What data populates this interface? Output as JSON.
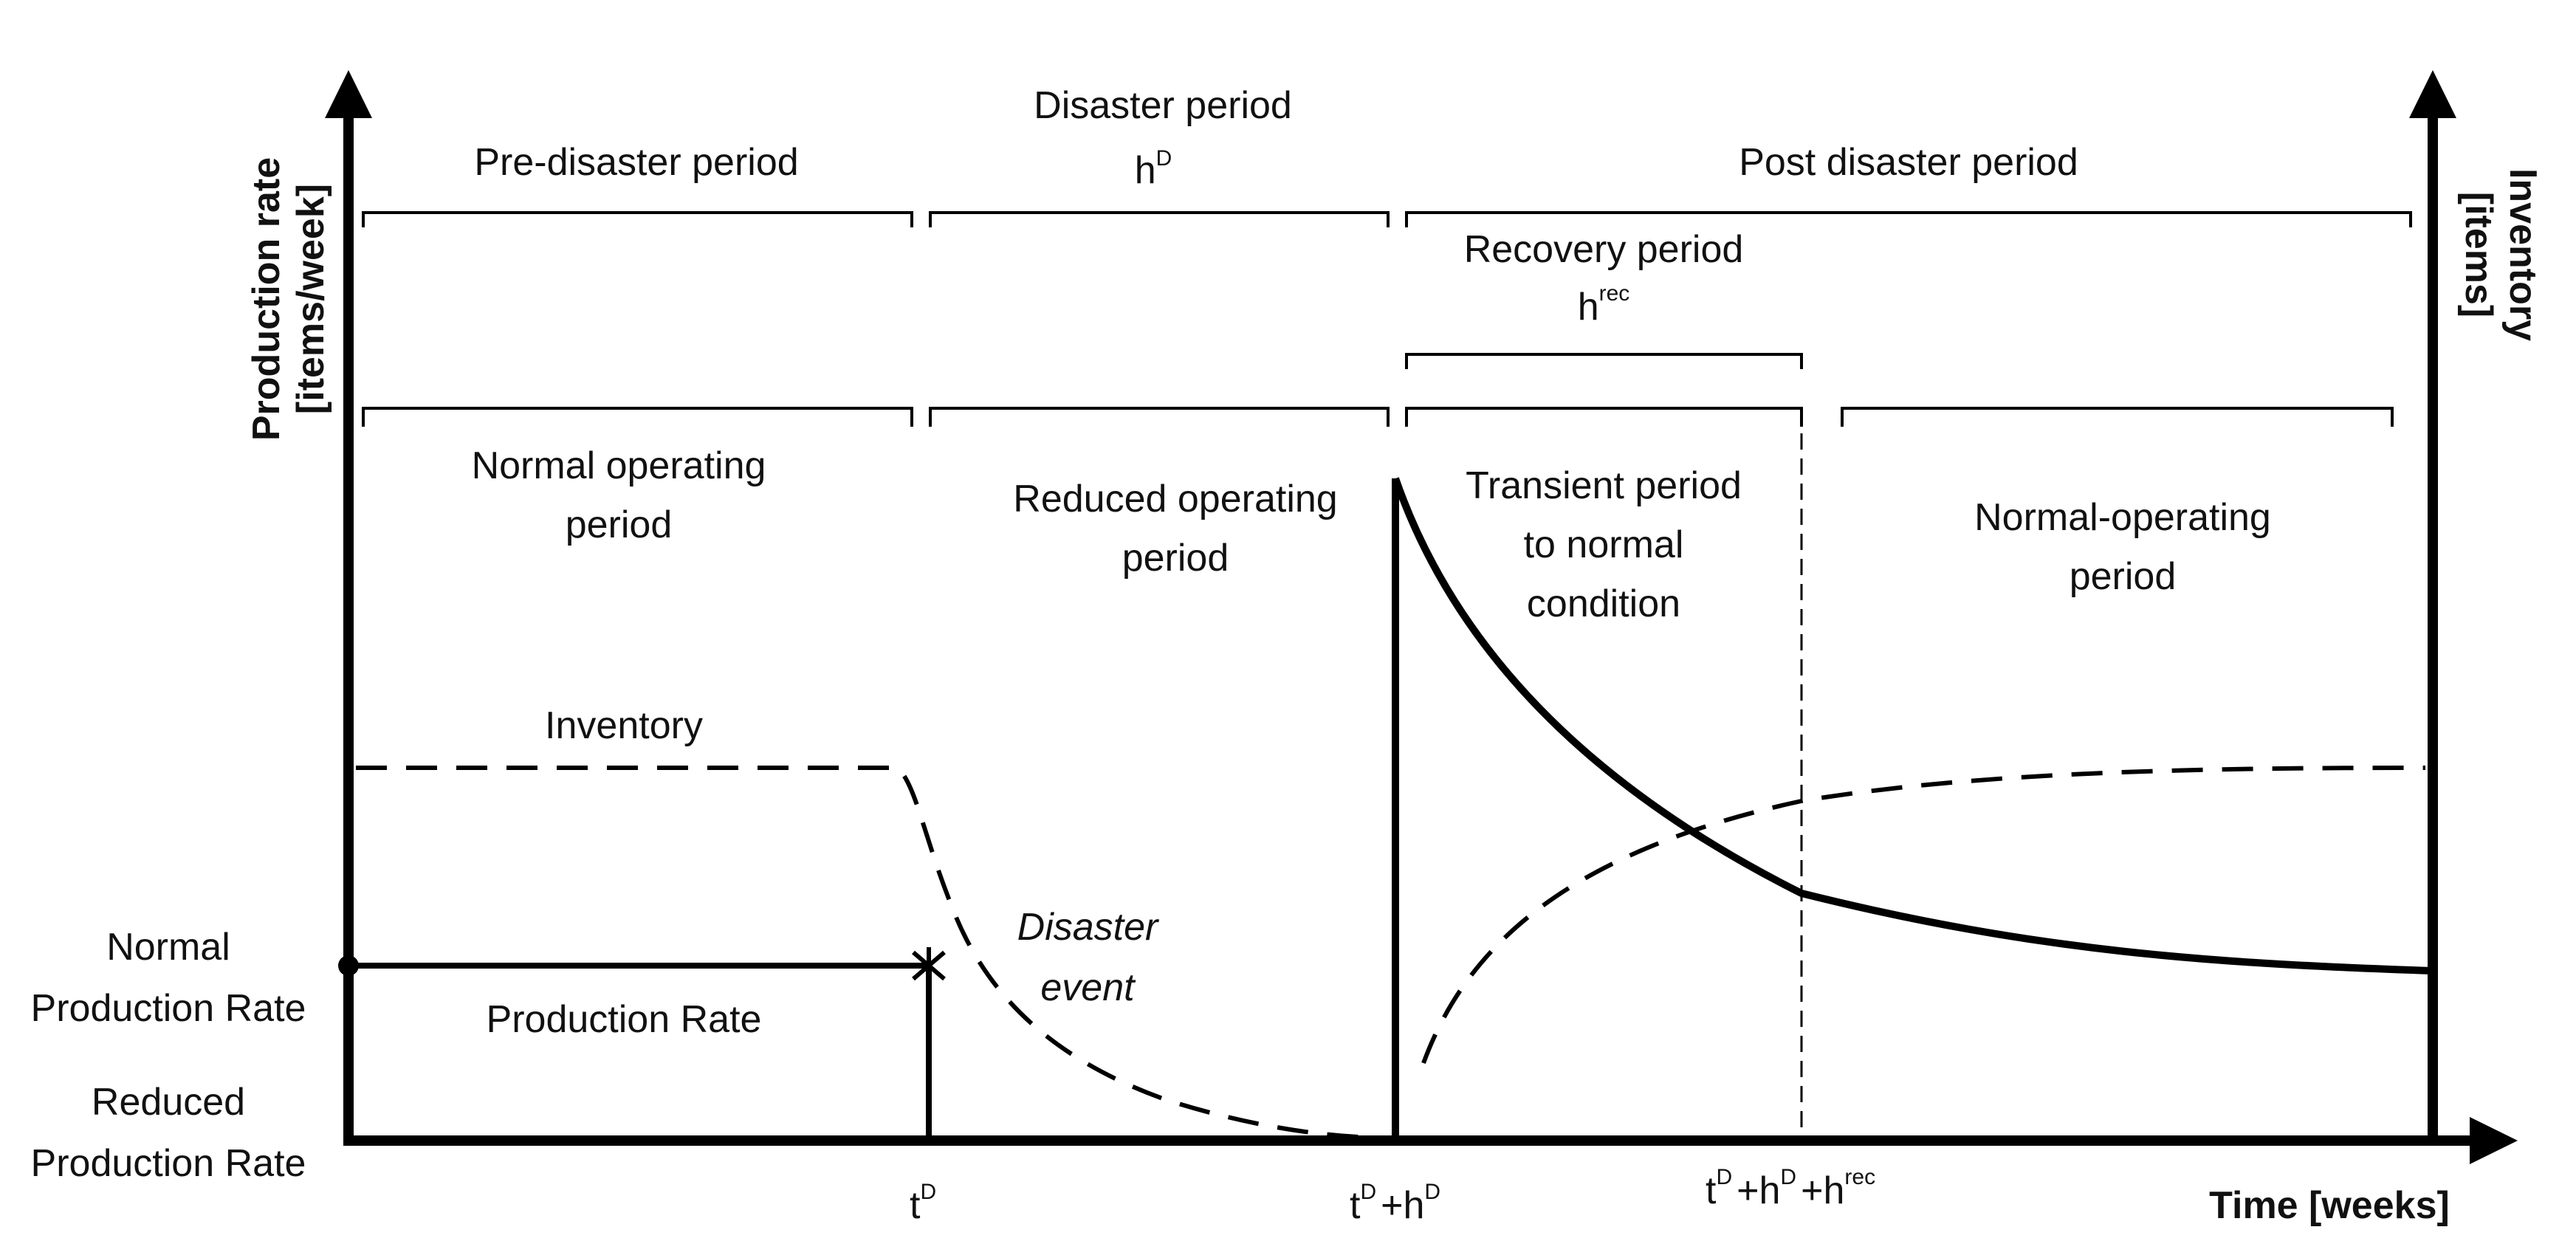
{
  "title": "",
  "axes": {
    "left_label_line1": "Production rate",
    "left_label_line2": "[items/week]",
    "right_label_line1": "Inventory",
    "right_label_line2": "[items]",
    "x_label": "Time [weeks]"
  },
  "periods": {
    "pre_disaster": "Pre-disaster period",
    "disaster": "Disaster period",
    "disaster_symbol": "h",
    "disaster_symbol_sup": "D",
    "post_disaster": "Post disaster period",
    "recovery": "Recovery period",
    "recovery_symbol": "h",
    "recovery_symbol_sup": "rec"
  },
  "phases": {
    "normal_line1": "Normal operating",
    "normal_line2": "period",
    "reduced_line1": "Reduced operating",
    "reduced_line2": "period",
    "transient_line1": "Transient period",
    "transient_line2": "to normal",
    "transient_line3": "condition",
    "normal2_line1": "Normal-operating",
    "normal2_line2": "period"
  },
  "curves": {
    "inventory": "Inventory",
    "production_rate": "Production Rate",
    "disaster_event_line1": "Disaster",
    "disaster_event_line2": "event"
  },
  "y_ticks": {
    "normal_line1": "Normal",
    "normal_line2": "Production Rate",
    "reduced_line1": "Reduced",
    "reduced_line2": "Production Rate"
  },
  "x_ticks": {
    "t": "t",
    "D": "D",
    "plus_h": "+h",
    "plus_h_rec": "+h",
    "rec": "rec"
  },
  "colors": {
    "ink": "#000000",
    "background": "#ffffff"
  }
}
